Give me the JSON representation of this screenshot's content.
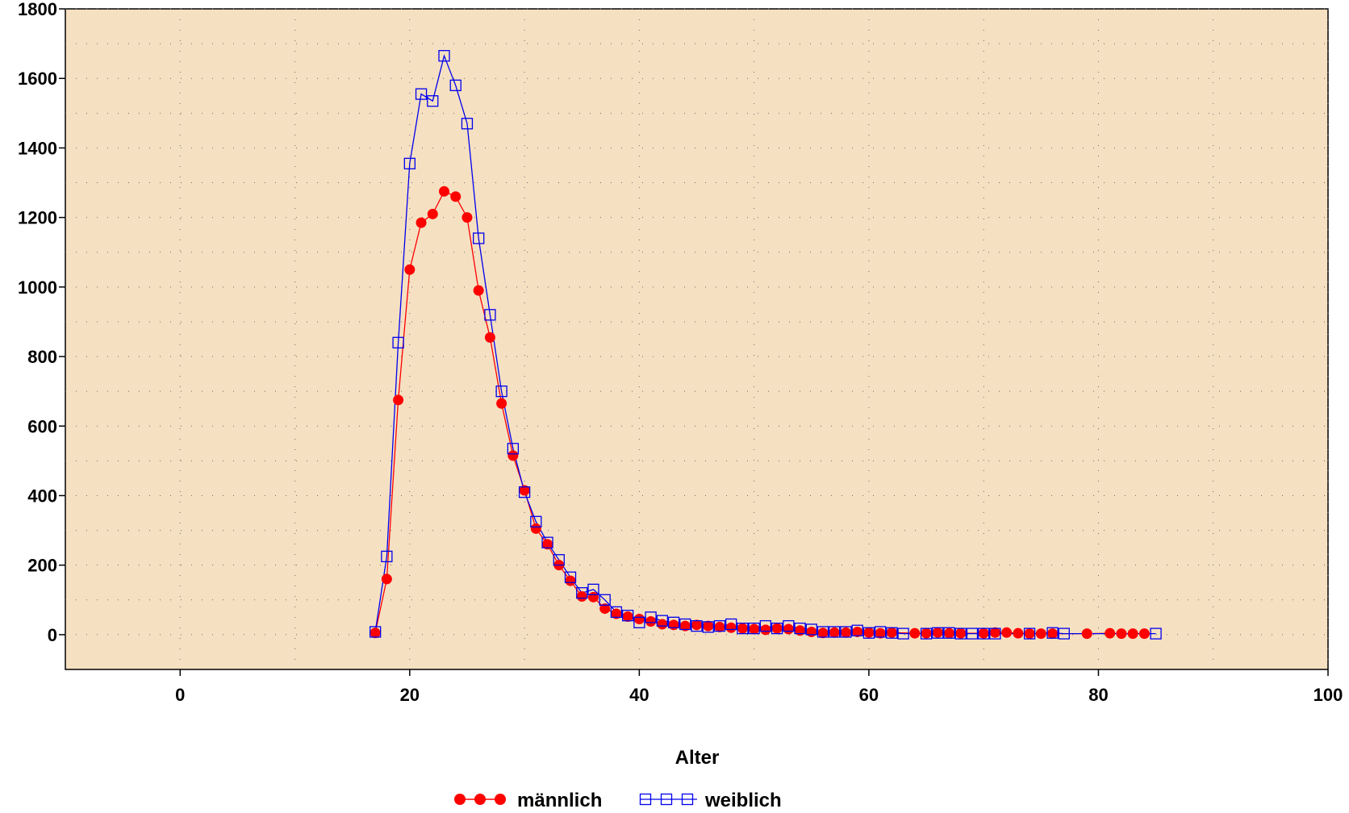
{
  "chart_data": {
    "type": "line",
    "title": "",
    "xlabel": "Alter",
    "ylabel": "",
    "xlim": [
      -10,
      100
    ],
    "ylim": [
      -100,
      1800
    ],
    "x_ticks": [
      0,
      20,
      40,
      60,
      80,
      100
    ],
    "y_ticks": [
      0,
      200,
      400,
      600,
      800,
      1000,
      1200,
      1400,
      1600,
      1800
    ],
    "grid": true,
    "plot_background": "#f5e0c2",
    "legend_position": "bottom-center",
    "series": [
      {
        "name": "männlich",
        "color": "#ff0000",
        "marker": "filled-circle",
        "x": [
          17,
          18,
          19,
          20,
          21,
          22,
          23,
          24,
          25,
          26,
          27,
          28,
          29,
          30,
          31,
          32,
          33,
          34,
          35,
          36,
          37,
          38,
          39,
          40,
          41,
          42,
          43,
          44,
          45,
          46,
          47,
          48,
          49,
          50,
          51,
          52,
          53,
          54,
          55,
          56,
          57,
          58,
          59,
          60,
          61,
          62,
          64,
          65,
          66,
          67,
          68,
          70,
          71,
          72,
          73,
          74,
          75,
          76,
          79,
          81,
          82,
          83,
          84
        ],
        "values": [
          5,
          160,
          675,
          1050,
          1185,
          1210,
          1275,
          1260,
          1200,
          990,
          855,
          665,
          515,
          415,
          305,
          260,
          200,
          155,
          110,
          108,
          75,
          60,
          52,
          45,
          38,
          30,
          28,
          25,
          28,
          25,
          22,
          20,
          18,
          16,
          14,
          18,
          16,
          12,
          8,
          5,
          6,
          6,
          8,
          6,
          4,
          6,
          4,
          4,
          6,
          4,
          4,
          4,
          6,
          6,
          4,
          3,
          3,
          3,
          3,
          4,
          3,
          3,
          3
        ]
      },
      {
        "name": "weiblich",
        "color": "#0000ee",
        "marker": "open-square",
        "x": [
          17,
          18,
          19,
          20,
          21,
          22,
          23,
          24,
          25,
          26,
          27,
          28,
          29,
          30,
          31,
          32,
          33,
          34,
          35,
          36,
          37,
          38,
          39,
          40,
          41,
          42,
          43,
          44,
          45,
          46,
          47,
          48,
          49,
          50,
          51,
          52,
          53,
          54,
          55,
          56,
          57,
          58,
          59,
          60,
          61,
          62,
          63,
          65,
          66,
          67,
          68,
          69,
          70,
          71,
          74,
          76,
          77,
          85
        ],
        "values": [
          8,
          225,
          840,
          1355,
          1555,
          1535,
          1665,
          1580,
          1470,
          1140,
          920,
          700,
          535,
          410,
          325,
          265,
          215,
          165,
          120,
          130,
          100,
          65,
          55,
          35,
          50,
          40,
          35,
          30,
          25,
          22,
          25,
          30,
          18,
          18,
          25,
          18,
          25,
          18,
          15,
          8,
          8,
          8,
          12,
          5,
          8,
          5,
          3,
          3,
          5,
          5,
          3,
          3,
          3,
          3,
          3,
          5,
          3,
          3
        ]
      }
    ]
  }
}
